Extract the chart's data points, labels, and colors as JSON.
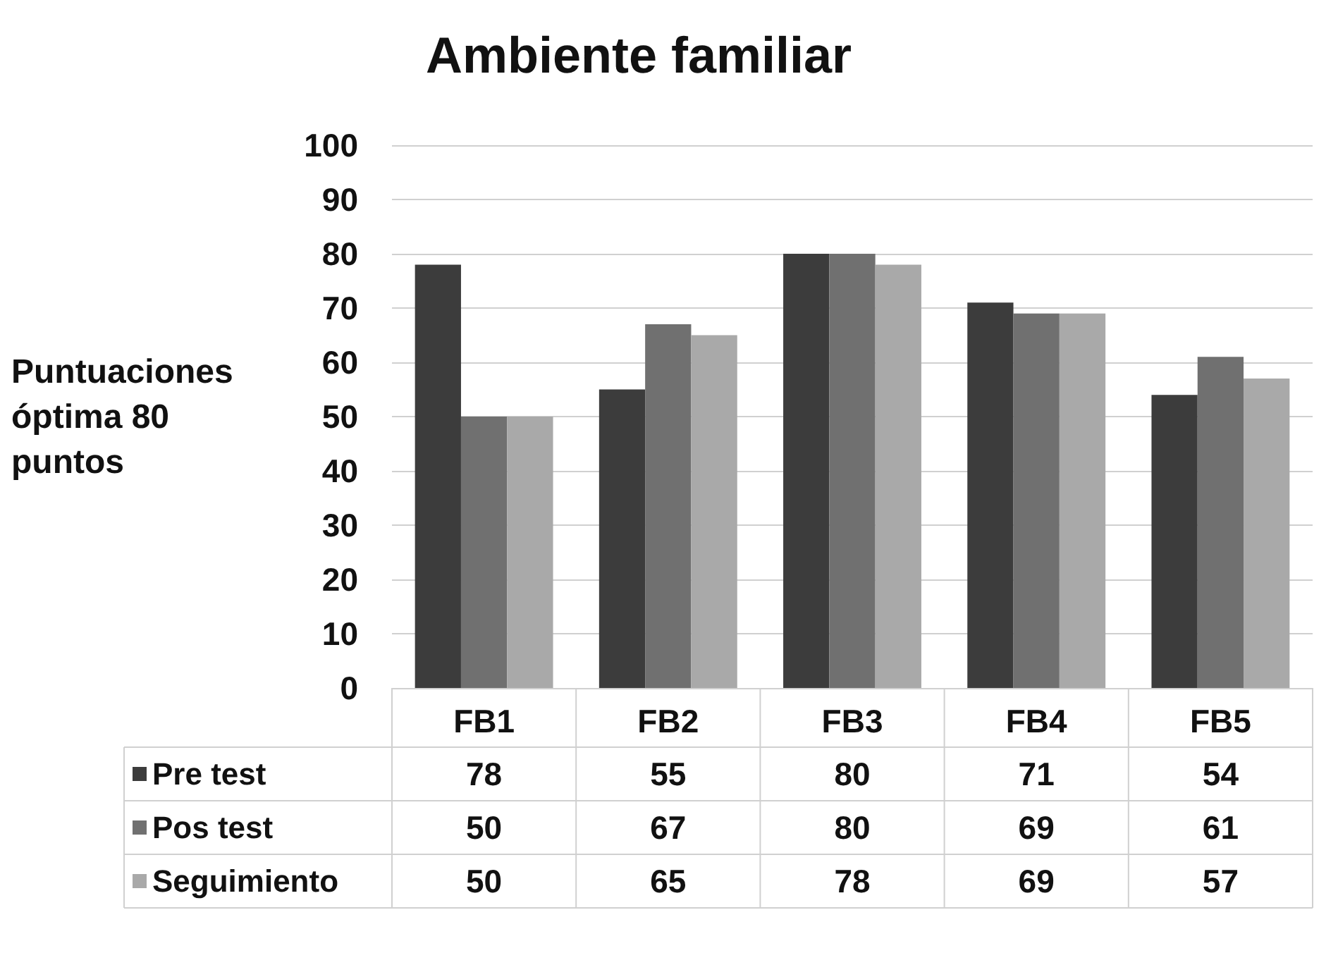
{
  "chart_data": {
    "type": "bar",
    "title": "Ambiente familiar",
    "ylabel": "Puntuaciones\nóptima 80\npuntos",
    "categories": [
      "FB1",
      "FB2",
      "FB3",
      "FB4",
      "FB5"
    ],
    "series": [
      {
        "name": "Pre test",
        "color": "#3c3c3c",
        "values": [
          78,
          55,
          80,
          71,
          54
        ]
      },
      {
        "name": "Pos test",
        "color": "#707070",
        "values": [
          50,
          67,
          80,
          69,
          61
        ]
      },
      {
        "name": "Seguimiento",
        "color": "#a9a9a9",
        "values": [
          50,
          65,
          78,
          69,
          57
        ]
      }
    ],
    "ylim": [
      0,
      100
    ],
    "yticks": [
      0,
      10,
      20,
      30,
      40,
      50,
      60,
      70,
      80,
      90,
      100
    ],
    "grid": "y",
    "data_labels": true,
    "legend": "bottom left"
  }
}
